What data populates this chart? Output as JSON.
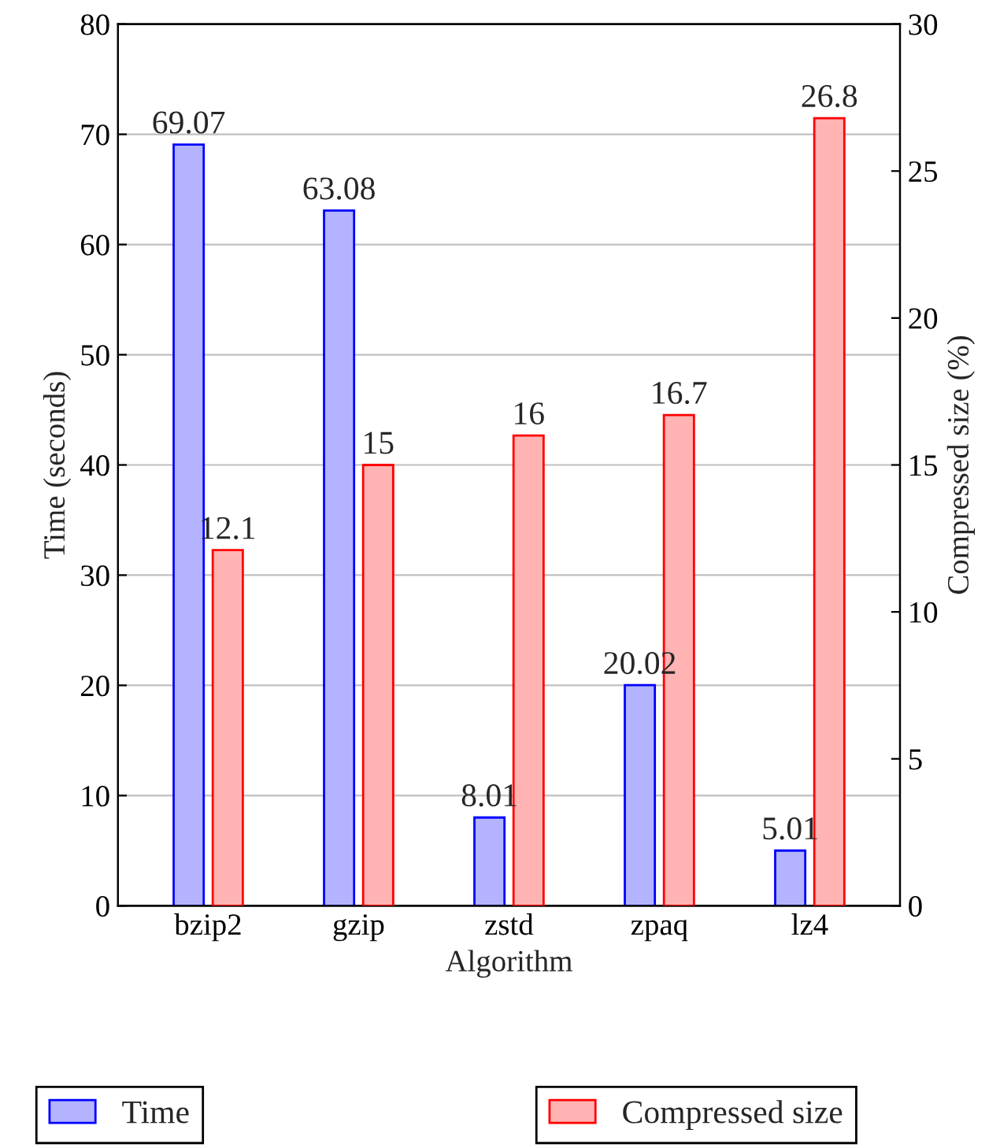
{
  "chart_data": {
    "type": "bar",
    "xlabel": "Algorithm",
    "ylabel": "Time (seconds)",
    "y2label": "Compressed size (%)",
    "categories": [
      "bzip2",
      "gzip",
      "zstd",
      "zpaq",
      "lz4"
    ],
    "series": [
      {
        "name": "Time",
        "color": "#b3b3ff",
        "values": [
          69.07,
          63.08,
          8.01,
          20.02,
          5.01
        ]
      },
      {
        "name": "Compressed size",
        "color": "#ffb3b3",
        "axis": "y2",
        "values": [
          12.1,
          15,
          16,
          16.7,
          26.8
        ]
      }
    ],
    "ylim": [
      0,
      80
    ],
    "yticks": [
      0,
      10,
      20,
      30,
      40,
      50,
      60,
      70,
      80
    ],
    "y2lim": [
      0,
      30
    ],
    "y2ticks": [
      0,
      5,
      10,
      15,
      20,
      25,
      30
    ],
    "grid": "y",
    "legend": "bottom",
    "data_labels": true
  }
}
